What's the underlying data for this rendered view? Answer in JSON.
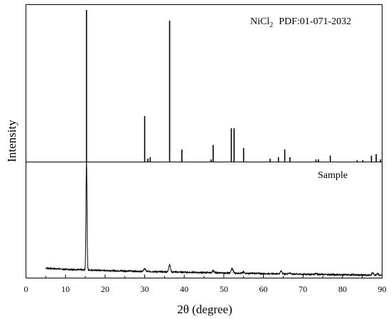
{
  "chart_data": {
    "type": "line",
    "xlabel": "2θ (degree)",
    "ylabel": "Intensity",
    "xlim": [
      0,
      90
    ],
    "xticks": [
      0,
      10,
      20,
      30,
      40,
      50,
      60,
      70,
      80,
      90
    ],
    "grid": false,
    "panels": [
      {
        "name": "reference",
        "annotation_main": "NiCl",
        "annotation_sub": "2",
        "annotation_rest": "PDF:01-071-2032",
        "style": "stick",
        "ylim": [
          0,
          100
        ],
        "sticks": [
          {
            "x": 15.3,
            "y": 100
          },
          {
            "x": 30.0,
            "y": 30
          },
          {
            "x": 30.8,
            "y": 2
          },
          {
            "x": 31.4,
            "y": 3
          },
          {
            "x": 36.3,
            "y": 93
          },
          {
            "x": 39.4,
            "y": 8
          },
          {
            "x": 46.8,
            "y": 1.5
          },
          {
            "x": 47.3,
            "y": 11
          },
          {
            "x": 51.9,
            "y": 22
          },
          {
            "x": 52.6,
            "y": 22
          },
          {
            "x": 55.0,
            "y": 9
          },
          {
            "x": 61.7,
            "y": 2
          },
          {
            "x": 63.8,
            "y": 3
          },
          {
            "x": 65.4,
            "y": 8
          },
          {
            "x": 66.7,
            "y": 3
          },
          {
            "x": 73.3,
            "y": 1.5
          },
          {
            "x": 73.9,
            "y": 1.5
          },
          {
            "x": 76.9,
            "y": 4
          },
          {
            "x": 83.7,
            "y": 1
          },
          {
            "x": 85.1,
            "y": 1
          },
          {
            "x": 87.3,
            "y": 4
          },
          {
            "x": 88.5,
            "y": 5
          },
          {
            "x": 89.6,
            "y": 1.5
          }
        ]
      },
      {
        "name": "sample",
        "annotation": "Sample",
        "style": "line",
        "ylim": [
          0,
          100
        ],
        "baseline_start": 8,
        "baseline_end": 1.5,
        "peaks": [
          {
            "x": 15.3,
            "y": 96,
            "w": 0.18
          },
          {
            "x": 30.0,
            "y": 2.5,
            "w": 0.3
          },
          {
            "x": 36.3,
            "y": 6.5,
            "w": 0.3
          },
          {
            "x": 47.3,
            "y": 2,
            "w": 0.3
          },
          {
            "x": 52.1,
            "y": 4,
            "w": 0.35
          },
          {
            "x": 55.0,
            "y": 1,
            "w": 0.3
          },
          {
            "x": 64.5,
            "y": 2.5,
            "w": 0.3
          },
          {
            "x": 66.6,
            "y": 1,
            "w": 0.3
          },
          {
            "x": 73.3,
            "y": 1,
            "w": 0.3
          },
          {
            "x": 87.6,
            "y": 2,
            "w": 0.3
          },
          {
            "x": 88.8,
            "y": 1.5,
            "w": 0.3
          }
        ]
      }
    ]
  }
}
